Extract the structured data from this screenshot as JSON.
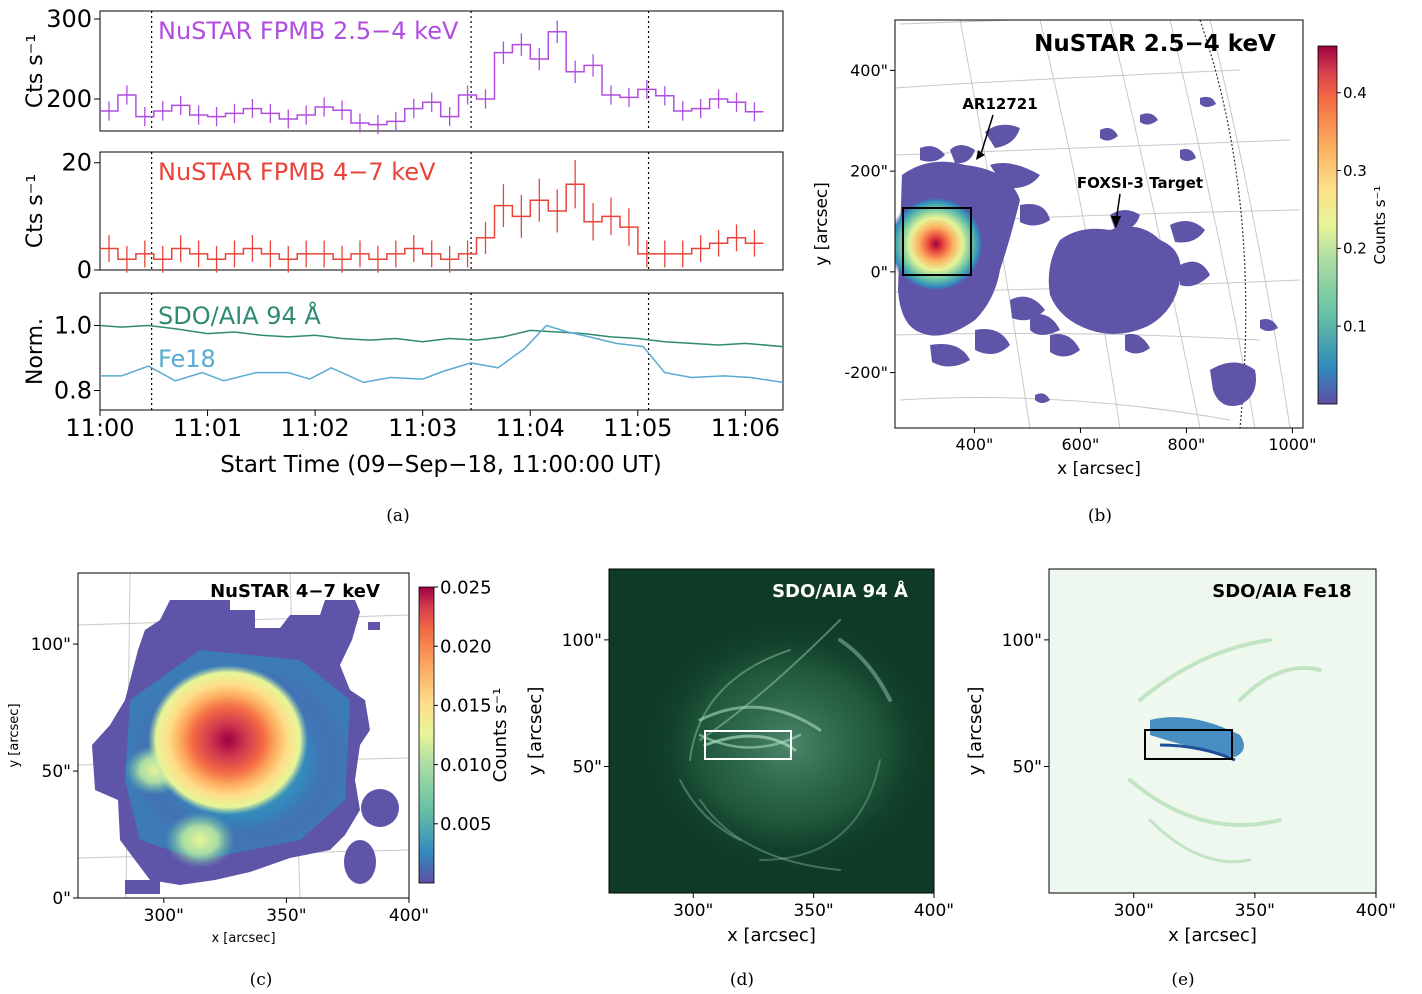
{
  "captions": {
    "a": "(a)",
    "b": "(b)",
    "c": "(c)",
    "d": "(d)",
    "e": "(e)"
  },
  "colors": {
    "purple": "#b04de0",
    "red": "#e8443a",
    "aia94": "#2f8a72",
    "fe18": "#5aaad2",
    "blob": "#5e54a8",
    "aia_bg": "#0f3b26",
    "fe18_bg": "#eef8ee"
  },
  "chart_data": [
    {
      "id": "a",
      "type": "line",
      "xlabel": "Start Time (09−Sep−18, 11:00:00 UT)",
      "x_ticks": [
        "11:00",
        "11:01",
        "11:02",
        "11:03",
        "11:04",
        "11:05",
        "11:06"
      ],
      "xlim_min": [
        0,
        6.35
      ],
      "vlines_min": [
        0.48,
        3.45,
        5.1
      ],
      "panels": [
        {
          "label": "NuSTAR FPMB 2.5−4 keV",
          "ylabel": "Cts s⁻¹",
          "ylim": [
            160,
            310
          ],
          "y_ticks": [
            200,
            300
          ],
          "step_min": 0.1667,
          "values": [
            185,
            205,
            178,
            185,
            192,
            180,
            178,
            182,
            188,
            182,
            175,
            180,
            190,
            186,
            170,
            168,
            172,
            188,
            196,
            178,
            205,
            200,
            258,
            268,
            250,
            284,
            234,
            242,
            205,
            202,
            212,
            204,
            185,
            188,
            200,
            196,
            184
          ],
          "errors": [
            12,
            12,
            12,
            12,
            12,
            12,
            12,
            12,
            12,
            12,
            12,
            12,
            12,
            12,
            12,
            12,
            12,
            12,
            12,
            12,
            12,
            12,
            14,
            14,
            14,
            14,
            14,
            14,
            12,
            12,
            12,
            12,
            12,
            12,
            12,
            12,
            12
          ]
        },
        {
          "label": "NuSTAR FPMB 4−7 keV",
          "ylabel": "Cts s⁻¹",
          "ylim": [
            0,
            22
          ],
          "y_ticks": [
            0,
            20
          ],
          "step_min": 0.1667,
          "values": [
            4,
            2,
            3,
            2,
            4,
            3,
            2,
            3,
            4,
            3,
            2,
            3,
            3,
            2,
            3,
            2,
            3,
            4,
            3,
            2,
            3,
            6,
            12,
            10,
            13,
            11,
            16,
            9,
            10,
            8,
            3,
            3,
            3,
            4,
            5,
            6,
            5
          ],
          "errors": [
            2.5,
            2.5,
            2.5,
            2.5,
            2.5,
            2.5,
            2.5,
            2.5,
            2.5,
            2.5,
            2.5,
            2.5,
            2.5,
            2.5,
            2.5,
            2.5,
            2.5,
            2.5,
            2.5,
            2.5,
            2.5,
            3,
            4,
            4,
            4,
            4,
            4.5,
            3.5,
            3.5,
            3.5,
            2.5,
            2.5,
            2.5,
            2.5,
            2.5,
            2.5,
            2.5
          ]
        },
        {
          "ylabel": "Norm.",
          "ylim": [
            0.74,
            1.1
          ],
          "y_ticks": [
            0.8,
            1.0
          ],
          "y_tick_labels": [
            "0.8",
            "1.0"
          ],
          "series": [
            {
              "name": "SDO/AIA 94 Å",
              "x": [
                0,
                0.2,
                0.45,
                0.7,
                1.0,
                1.25,
                1.5,
                1.75,
                2.0,
                2.25,
                2.5,
                2.75,
                3.0,
                3.25,
                3.5,
                3.75,
                4.0,
                4.25,
                4.5,
                4.75,
                5.0,
                5.25,
                5.5,
                5.75,
                6.0,
                6.35
              ],
              "y": [
                1.0,
                0.995,
                1.0,
                0.99,
                0.975,
                0.98,
                0.97,
                0.965,
                0.97,
                0.96,
                0.955,
                0.96,
                0.95,
                0.96,
                0.955,
                0.965,
                0.985,
                0.98,
                0.975,
                0.965,
                0.96,
                0.95,
                0.945,
                0.94,
                0.945,
                0.935
              ]
            },
            {
              "name": "Fe18",
              "x": [
                0,
                0.2,
                0.45,
                0.7,
                0.95,
                1.15,
                1.45,
                1.75,
                1.95,
                2.15,
                2.45,
                2.7,
                3.0,
                3.2,
                3.45,
                3.7,
                3.95,
                4.15,
                4.35,
                4.55,
                4.8,
                5.05,
                5.25,
                5.5,
                5.8,
                6.05,
                6.35
              ],
              "y": [
                0.845,
                0.845,
                0.875,
                0.83,
                0.855,
                0.83,
                0.855,
                0.855,
                0.835,
                0.87,
                0.825,
                0.84,
                0.835,
                0.86,
                0.885,
                0.87,
                0.93,
                1.0,
                0.98,
                0.965,
                0.945,
                0.935,
                0.855,
                0.84,
                0.845,
                0.84,
                0.825
              ]
            }
          ]
        }
      ]
    },
    {
      "id": "b",
      "type": "heatmap",
      "title": "NuSTAR 2.5−4 keV",
      "xlabel": "x [arcsec]",
      "ylabel": "y [arcsec]",
      "x_ticks": [
        "400\"",
        "600\"",
        "800\"",
        "1000\""
      ],
      "x_tick_values": [
        400,
        600,
        800,
        1000
      ],
      "y_ticks": [
        "400\"",
        "200\"",
        "0\"",
        "-200\""
      ],
      "y_tick_values": [
        400,
        200,
        0,
        -200
      ],
      "xlim": [
        250,
        1020
      ],
      "ylim": [
        -310,
        500
      ],
      "colorbar": {
        "label": "Counts s⁻¹",
        "ticks": [
          "0.1",
          "0.2",
          "0.3",
          "0.4"
        ],
        "tick_values": [
          0.1,
          0.2,
          0.3,
          0.4
        ],
        "range": [
          0.0,
          0.46
        ]
      },
      "annotations": [
        "AR12721",
        "FOXSI-3 Target"
      ]
    },
    {
      "id": "c",
      "type": "heatmap",
      "title": "NuSTAR 4−7 keV",
      "xlabel": "x [arcsec]",
      "ylabel": "y [arcsec]",
      "x_ticks": [
        "300\"",
        "350\"",
        "400\""
      ],
      "x_tick_values": [
        300,
        350,
        400
      ],
      "y_ticks": [
        "100\"",
        "50\"",
        "0\""
      ],
      "y_tick_values": [
        100,
        50,
        0
      ],
      "xlim": [
        265,
        400
      ],
      "ylim": [
        0,
        128
      ],
      "colorbar": {
        "label": "Counts s⁻¹",
        "ticks": [
          "0.025",
          "0.020",
          "0.015",
          "0.010",
          "0.005"
        ],
        "tick_values": [
          0.025,
          0.02,
          0.015,
          0.01,
          0.005
        ],
        "range": [
          0.0,
          0.025
        ]
      }
    },
    {
      "id": "d",
      "type": "heatmap",
      "title": "SDO/AIA 94 Å",
      "xlabel": "x [arcsec]",
      "ylabel": "y [arcsec]",
      "x_ticks": [
        "300\"",
        "350\"",
        "400\""
      ],
      "x_tick_values": [
        300,
        350,
        400
      ],
      "y_ticks": [
        "100\"",
        "50\""
      ],
      "y_tick_values": [
        100,
        50
      ],
      "xlim": [
        265,
        400
      ],
      "ylim": [
        0,
        128
      ]
    },
    {
      "id": "e",
      "type": "heatmap",
      "title": "SDO/AIA Fe18",
      "xlabel": "x [arcsec]",
      "ylabel": "y [arcsec]",
      "x_ticks": [
        "300\"",
        "350\"",
        "400\""
      ],
      "x_tick_values": [
        300,
        350,
        400
      ],
      "y_ticks": [
        "100\"",
        "50\""
      ],
      "y_tick_values": [
        100,
        50
      ],
      "xlim": [
        265,
        400
      ],
      "ylim": [
        0,
        128
      ]
    }
  ]
}
